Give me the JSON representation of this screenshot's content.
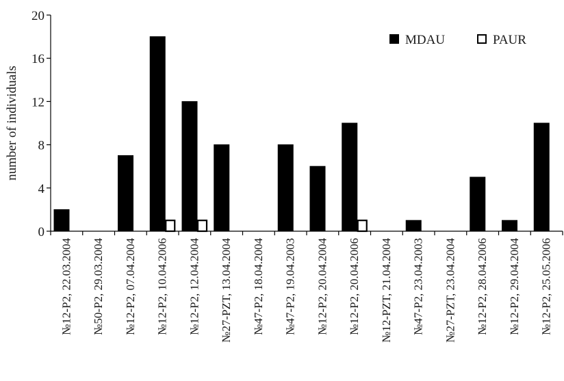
{
  "chart_data": {
    "type": "bar",
    "title": "",
    "xlabel": "",
    "ylabel": "number of individuals",
    "ylim": [
      0,
      20
    ],
    "yticks": [
      0,
      4,
      8,
      12,
      16,
      20
    ],
    "grid": false,
    "legend_position": "top-right",
    "categories": [
      "№12-P2, 22.03.2004",
      "№50-P2, 29.03.2004",
      "№12-P2, 07.04.2004",
      "№12-P2, 10.04.2006",
      "№12-P2, 12.04.2004",
      "№27-PZT, 13.04.2004",
      "№47-P2, 18.04.2004",
      "№47-P2, 19.04.2003",
      "№12-P2, 20.04.2004",
      "№12-P2, 20.04.2006",
      "№12-PZT, 21.04.2004",
      "№47-P2, 23.04.2003",
      "№27-PZT, 23.04.2004",
      "№12-P2, 28.04.2006",
      "№12-P2, 29.04.2004",
      "№12-P2, 25.05.2006"
    ],
    "series": [
      {
        "name": "MDAU",
        "color": "#000000",
        "values": [
          2,
          0,
          7,
          18,
          12,
          8,
          0,
          8,
          6,
          10,
          0,
          1,
          0,
          5,
          1,
          10
        ]
      },
      {
        "name": "PAUR",
        "color": "#ffffff",
        "values": [
          0,
          0,
          0,
          1,
          1,
          0,
          0,
          0,
          0,
          1,
          0,
          0,
          0,
          0,
          0,
          0
        ]
      }
    ]
  }
}
